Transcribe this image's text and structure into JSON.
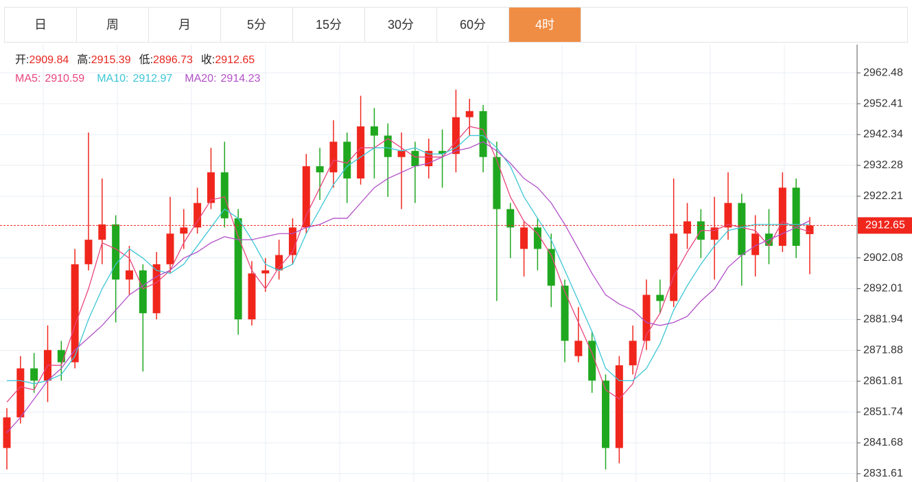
{
  "tabs": {
    "items": [
      "日",
      "周",
      "月",
      "5分",
      "15分",
      "30分",
      "60分",
      "4时"
    ],
    "active": 7
  },
  "chart_data": {
    "type": "candlestick",
    "ohlc_labels": [
      "开:",
      "高:",
      "低:",
      "收:"
    ],
    "open": [
      2840,
      2850,
      2866,
      2862,
      2872,
      2868,
      2900,
      2908,
      2913,
      2895,
      2898,
      2884,
      2900,
      2910,
      2912,
      2920,
      2930,
      2915,
      2882,
      2897,
      2898,
      2903,
      2912,
      2932,
      2930,
      2940,
      2928,
      2945,
      2942,
      2935,
      2937,
      2932,
      2937,
      2936,
      2948,
      2950,
      2935,
      2918,
      2905,
      2912,
      2905,
      2893,
      2870,
      2875,
      2862,
      2840,
      2867,
      2875,
      2890,
      2888,
      2910,
      2914,
      2908,
      2912,
      2920,
      2903,
      2910,
      2906,
      2925,
      2909.84
    ],
    "high": [
      2853,
      2870,
      2871,
      2880,
      2875,
      2905,
      2943,
      2928,
      2916,
      2906,
      2900,
      2904,
      2922,
      2918,
      2925,
      2938,
      2940,
      2918,
      2901,
      2902,
      2908,
      2915,
      2936,
      2938,
      2947,
      2943,
      2955,
      2951,
      2946,
      2943,
      2940,
      2941,
      2944,
      2957,
      2954,
      2952,
      2940,
      2920,
      2914,
      2915,
      2910,
      2895,
      2886,
      2878,
      2864,
      2870,
      2880,
      2895,
      2895,
      2928,
      2920,
      2918,
      2922,
      2930,
      2923,
      2916,
      2918,
      2930,
      2928,
      2915.39
    ],
    "low": [
      2833,
      2848,
      2858,
      2855,
      2862,
      2866,
      2898,
      2900,
      2881,
      2890,
      2865,
      2882,
      2897,
      2905,
      2910,
      2918,
      2912,
      2877,
      2880,
      2891,
      2895,
      2900,
      2910,
      2921,
      2925,
      2920,
      2926,
      2928,
      2922,
      2918,
      2920,
      2928,
      2925,
      2930,
      2942,
      2930,
      2888,
      2902,
      2896,
      2898,
      2886,
      2868,
      2868,
      2858,
      2833,
      2835,
      2864,
      2872,
      2884,
      2886,
      2905,
      2902,
      2895,
      2908,
      2893,
      2896,
      2900,
      2904,
      2902,
      2896.73
    ],
    "close": [
      2850,
      2866,
      2862,
      2872,
      2868,
      2900,
      2908,
      2913,
      2895,
      2898,
      2884,
      2900,
      2910,
      2912,
      2920,
      2930,
      2915,
      2882,
      2897,
      2898,
      2903,
      2912,
      2932,
      2930,
      2940,
      2928,
      2945,
      2942,
      2935,
      2937,
      2932,
      2937,
      2936,
      2948,
      2950,
      2935,
      2918,
      2912,
      2912,
      2905,
      2893,
      2875,
      2875,
      2862,
      2840,
      2867,
      2875,
      2890,
      2888,
      2910,
      2914,
      2908,
      2912,
      2920,
      2903,
      2910,
      2906,
      2925,
      2906,
      2912.65
    ],
    "up_color": "#f0261c",
    "down_color": "#1fa81f",
    "series": [
      {
        "name": "MA5:",
        "color": "#e8457d",
        "values": [
          2855,
          2860,
          2859,
          2867,
          2867,
          2880,
          2892,
          2907,
          2905,
          2902,
          2892,
          2894,
          2898,
          2907,
          2914,
          2921,
          2922,
          2909,
          2898,
          2892,
          2899,
          2904,
          2916,
          2925,
          2934,
          2933,
          2938,
          2938,
          2941,
          2938,
          2935,
          2935,
          2935,
          2940,
          2945,
          2944,
          2934,
          2922,
          2914,
          2910,
          2903,
          2891,
          2881,
          2871,
          2859,
          2856,
          2861,
          2877,
          2884,
          2896,
          2904,
          2911,
          2911,
          2913,
          2912,
          2911,
          2906,
          2914,
          2912,
          2910.59
        ]
      },
      {
        "name": "MA10:",
        "color": "#3cc6d6",
        "values": [
          2862,
          2862,
          2861,
          2862,
          2864,
          2870,
          2882,
          2892,
          2900,
          2905,
          2902,
          2898,
          2897,
          2900,
          2906,
          2912,
          2918,
          2915,
          2908,
          2900,
          2898,
          2900,
          2910,
          2918,
          2926,
          2932,
          2935,
          2938,
          2938,
          2937,
          2938,
          2936,
          2936,
          2938,
          2942,
          2942,
          2938,
          2932,
          2922,
          2915,
          2908,
          2898,
          2888,
          2878,
          2866,
          2862,
          2862,
          2866,
          2874,
          2885,
          2893,
          2900,
          2906,
          2911,
          2912,
          2913,
          2913,
          2913,
          2913,
          2912.97
        ]
      },
      {
        "name": "MA20:",
        "color": "#b24fc8",
        "values": [
          2845,
          2850,
          2856,
          2862,
          2866,
          2872,
          2876,
          2880,
          2885,
          2890,
          2893,
          2896,
          2898,
          2902,
          2904,
          2907,
          2909,
          2908,
          2908,
          2909,
          2910,
          2910,
          2912,
          2913,
          2915,
          2915,
          2920,
          2925,
          2928,
          2930,
          2932,
          2933,
          2935,
          2937,
          2938,
          2940,
          2937,
          2933,
          2928,
          2925,
          2920,
          2913,
          2905,
          2897,
          2890,
          2887,
          2885,
          2881,
          2880,
          2881,
          2883,
          2888,
          2892,
          2899,
          2903,
          2906,
          2908,
          2910,
          2912,
          2914.23
        ]
      }
    ],
    "ylim": [
      2828.9,
      2971.7
    ],
    "yticks": [
      2962.48,
      2952.41,
      2942.34,
      2932.28,
      2922.21,
      2902.08,
      2892.01,
      2881.94,
      2871.88,
      2861.81,
      2851.74,
      2841.68,
      2831.61
    ],
    "grid": true
  }
}
